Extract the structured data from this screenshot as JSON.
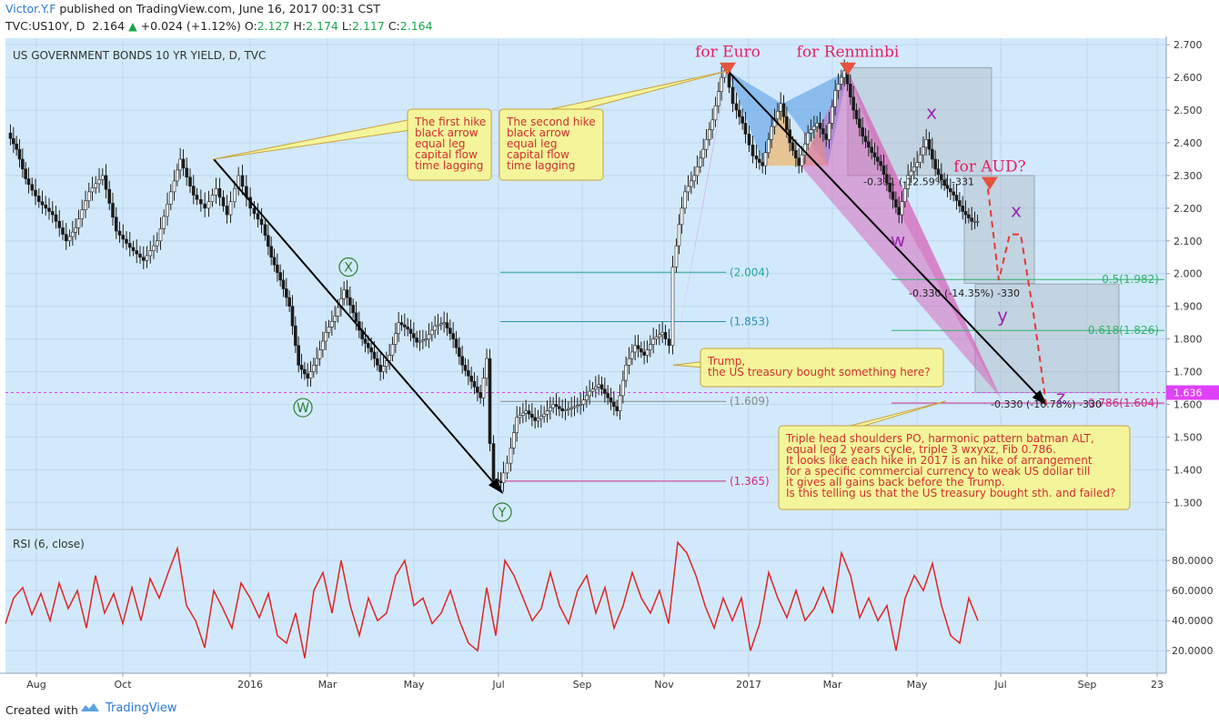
{
  "header": {
    "author": "Victor.Y.F",
    "published": "published on TradingView.com, June 16, 2017 00:31 CST",
    "symbol": "TVC:US10Y, D",
    "last": "2.164",
    "change": "+0.024 (+1.12%)",
    "o_label": "O:",
    "o": "2.127",
    "h_label": "H:",
    "h": "2.174",
    "l_label": "L:",
    "l": "2.117",
    "c_label": "C:",
    "c": "2.164",
    "up_color": "#1aa64a"
  },
  "footer": {
    "created_with": "Created with",
    "brand": "TradingView"
  },
  "chart_data": {
    "type": "candlestick",
    "title": "US GOVERNMENT BONDS 10 YR YIELD, D, TVC",
    "x_ticks": [
      "Aug",
      "Oct",
      "2016",
      "Mar",
      "May",
      "Jul",
      "Sep",
      "Nov",
      "2017",
      "Mar",
      "May",
      "Jul",
      "Sep",
      "23"
    ],
    "x_tick_index": [
      40,
      135,
      275,
      360,
      455,
      548,
      640,
      730,
      823,
      915,
      1008,
      1100,
      1195,
      1272
    ],
    "ylim": [
      1.22,
      2.72
    ],
    "y_ticks": [
      1.3,
      1.4,
      1.5,
      1.6,
      1.7,
      1.8,
      1.9,
      2.0,
      2.1,
      2.2,
      2.3,
      2.4,
      2.5,
      2.6,
      2.7
    ],
    "y_tick_labels": [
      "1.300",
      "1.400",
      "1.500",
      "1.600",
      "1.700",
      "1.800",
      "1.900",
      "2.000",
      "2.100",
      "2.200",
      "2.300",
      "2.400",
      "2.500",
      "2.600",
      "2.700"
    ],
    "current_price": {
      "value": 1.636,
      "label": "1.636",
      "color": "#e040fb"
    },
    "price_path": [
      [
        10,
        2.43
      ],
      [
        20,
        2.38
      ],
      [
        30,
        2.29
      ],
      [
        45,
        2.22
      ],
      [
        60,
        2.18
      ],
      [
        75,
        2.1
      ],
      [
        85,
        2.14
      ],
      [
        100,
        2.25
      ],
      [
        115,
        2.3
      ],
      [
        130,
        2.13
      ],
      [
        145,
        2.08
      ],
      [
        160,
        2.04
      ],
      [
        175,
        2.1
      ],
      [
        190,
        2.25
      ],
      [
        200,
        2.35
      ],
      [
        215,
        2.24
      ],
      [
        228,
        2.2
      ],
      [
        240,
        2.26
      ],
      [
        252,
        2.18
      ],
      [
        265,
        2.3
      ],
      [
        278,
        2.2
      ],
      [
        290,
        2.15
      ],
      [
        300,
        2.05
      ],
      [
        310,
        1.98
      ],
      [
        320,
        1.9
      ],
      [
        330,
        1.72
      ],
      [
        340,
        1.68
      ],
      [
        350,
        1.74
      ],
      [
        360,
        1.82
      ],
      [
        370,
        1.87
      ],
      [
        380,
        1.95
      ],
      [
        390,
        1.88
      ],
      [
        400,
        1.8
      ],
      [
        410,
        1.76
      ],
      [
        420,
        1.7
      ],
      [
        430,
        1.75
      ],
      [
        440,
        1.85
      ],
      [
        450,
        1.83
      ],
      [
        460,
        1.79
      ],
      [
        470,
        1.8
      ],
      [
        480,
        1.84
      ],
      [
        490,
        1.85
      ],
      [
        500,
        1.8
      ],
      [
        510,
        1.72
      ],
      [
        520,
        1.67
      ],
      [
        530,
        1.62
      ],
      [
        537,
        1.74
      ],
      [
        541,
        1.48
      ],
      [
        546,
        1.37
      ],
      [
        552,
        1.36
      ],
      [
        560,
        1.42
      ],
      [
        570,
        1.56
      ],
      [
        580,
        1.58
      ],
      [
        590,
        1.55
      ],
      [
        600,
        1.57
      ],
      [
        610,
        1.6
      ],
      [
        620,
        1.58
      ],
      [
        630,
        1.59
      ],
      [
        640,
        1.6
      ],
      [
        650,
        1.64
      ],
      [
        660,
        1.66
      ],
      [
        670,
        1.62
      ],
      [
        680,
        1.58
      ],
      [
        690,
        1.72
      ],
      [
        700,
        1.78
      ],
      [
        710,
        1.75
      ],
      [
        720,
        1.8
      ],
      [
        730,
        1.82
      ],
      [
        738,
        1.78
      ],
      [
        742,
        2.02
      ],
      [
        748,
        2.15
      ],
      [
        755,
        2.25
      ],
      [
        765,
        2.3
      ],
      [
        775,
        2.38
      ],
      [
        785,
        2.47
      ],
      [
        795,
        2.6
      ],
      [
        800,
        2.62
      ],
      [
        808,
        2.52
      ],
      [
        818,
        2.46
      ],
      [
        830,
        2.36
      ],
      [
        840,
        2.33
      ],
      [
        850,
        2.45
      ],
      [
        860,
        2.52
      ],
      [
        870,
        2.4
      ],
      [
        880,
        2.33
      ],
      [
        890,
        2.43
      ],
      [
        900,
        2.46
      ],
      [
        910,
        2.41
      ],
      [
        920,
        2.56
      ],
      [
        930,
        2.62
      ],
      [
        940,
        2.5
      ],
      [
        950,
        2.42
      ],
      [
        960,
        2.37
      ],
      [
        970,
        2.33
      ],
      [
        980,
        2.25
      ],
      [
        990,
        2.18
      ],
      [
        1000,
        2.3
      ],
      [
        1010,
        2.34
      ],
      [
        1020,
        2.41
      ],
      [
        1030,
        2.32
      ],
      [
        1040,
        2.27
      ],
      [
        1050,
        2.24
      ],
      [
        1060,
        2.19
      ],
      [
        1070,
        2.16
      ],
      [
        1076,
        2.16
      ]
    ],
    "price_levels": [
      {
        "value": 2.004,
        "label": "(2.004)",
        "color": "#26a69a"
      },
      {
        "value": 1.853,
        "label": "(1.853)",
        "color": "#2b8fb8"
      },
      {
        "value": 1.609,
        "label": "(1.609)",
        "color": "#888888"
      },
      {
        "value": 1.365,
        "label": "(1.365)",
        "color": "#d0278a"
      },
      {
        "value": 1.982,
        "label": "0.5(1.982)",
        "color": "#2fb36a"
      },
      {
        "value": 1.826,
        "label": "0.618(1.826)",
        "color": "#2fb36a"
      },
      {
        "value": 1.604,
        "label": "0.786(1.604)",
        "color": "#d0278a"
      }
    ],
    "wave_labels": [
      {
        "text": "X",
        "x": 383,
        "y": 2.02,
        "color": "#2e7d32",
        "circled": true
      },
      {
        "text": "W",
        "x": 333,
        "y": 1.59,
        "color": "#2e7d32",
        "circled": true
      },
      {
        "text": "Y",
        "x": 552,
        "y": 1.27,
        "color": "#2e7d32",
        "circled": true
      },
      {
        "text": "x",
        "x": 1024,
        "y": 2.49,
        "color": "#9c27b0",
        "circled": false
      },
      {
        "text": "w",
        "x": 987,
        "y": 2.1,
        "color": "#9c27b0",
        "circled": false
      },
      {
        "text": "x",
        "x": 1117,
        "y": 2.19,
        "color": "#9c27b0",
        "circled": false
      },
      {
        "text": "y",
        "x": 1102,
        "y": 1.87,
        "color": "#9c27b0",
        "circled": false
      },
      {
        "text": "z",
        "x": 1166,
        "y": 1.62,
        "color": "#9c27b0",
        "circled": false
      }
    ],
    "markers": [
      {
        "text": "for Euro",
        "x": 800,
        "y": 2.64,
        "color": "#e91e63"
      },
      {
        "text": "for Renminbi",
        "x": 932,
        "y": 2.64,
        "color": "#e91e63"
      },
      {
        "text": "for AUD?",
        "x": 1088,
        "y": 2.29,
        "color": "#e91e63"
      }
    ],
    "measures": [
      {
        "text": "-0.331 (-12.59%) -331",
        "x": 1010,
        "y": 2.27
      },
      {
        "text": "-0.330 (-14.35%) -330",
        "x": 1060,
        "y": 1.93
      },
      {
        "text": "-0.330 (-16.78%) -330",
        "x": 1150,
        "y": 1.59
      }
    ],
    "callouts": [
      {
        "lines": [
          "The first hike",
          "black arrow",
          "equal leg",
          "capital flow",
          "time lagging"
        ],
        "color": "#d32f2f"
      },
      {
        "lines": [
          "The second hike",
          "black arrow",
          "equal leg",
          "capital flow",
          "time lagging"
        ],
        "color": "#d32f2f"
      },
      {
        "lines": [
          "Trump,",
          "the US treasury bought something here?"
        ],
        "color": "#d32f2f"
      },
      {
        "lines": [
          "Triple head shoulders PO, harmonic pattern batman ALT,",
          "equal leg 2 years cycle, triple 3 wxyxz, Fib 0.786.",
          "It looks like each hike in 2017 is an hike of arrangement",
          "for a specific commercial currency to weak US dollar till",
          "it gives all gains back before the Trump.",
          "Is this telling us that the US treasury bought sth. and failed?"
        ],
        "color": "#d32f2f"
      }
    ],
    "rsi": {
      "title": "RSI (6, close)",
      "ylim": [
        5,
        100
      ],
      "y_ticks": [
        20,
        40,
        60,
        80
      ],
      "y_tick_labels": [
        "20.0000",
        "40.0000",
        "60.0000",
        "80.0000"
      ],
      "color": "#e02424",
      "path": [
        [
          6,
          38
        ],
        [
          15,
          55
        ],
        [
          25,
          62
        ],
        [
          35,
          44
        ],
        [
          45,
          58
        ],
        [
          55,
          40
        ],
        [
          65,
          65
        ],
        [
          75,
          48
        ],
        [
          85,
          60
        ],
        [
          95,
          35
        ],
        [
          105,
          70
        ],
        [
          115,
          45
        ],
        [
          125,
          58
        ],
        [
          135,
          38
        ],
        [
          145,
          62
        ],
        [
          155,
          40
        ],
        [
          165,
          68
        ],
        [
          175,
          55
        ],
        [
          185,
          72
        ],
        [
          195,
          88
        ],
        [
          205,
          50
        ],
        [
          215,
          40
        ],
        [
          225,
          22
        ],
        [
          235,
          60
        ],
        [
          245,
          48
        ],
        [
          255,
          35
        ],
        [
          265,
          65
        ],
        [
          275,
          55
        ],
        [
          285,
          42
        ],
        [
          295,
          58
        ],
        [
          305,
          30
        ],
        [
          315,
          25
        ],
        [
          325,
          45
        ],
        [
          335,
          15
        ],
        [
          345,
          60
        ],
        [
          355,
          72
        ],
        [
          365,
          45
        ],
        [
          375,
          80
        ],
        [
          385,
          50
        ],
        [
          395,
          30
        ],
        [
          405,
          55
        ],
        [
          415,
          40
        ],
        [
          425,
          45
        ],
        [
          435,
          70
        ],
        [
          445,
          80
        ],
        [
          455,
          50
        ],
        [
          465,
          55
        ],
        [
          475,
          38
        ],
        [
          485,
          45
        ],
        [
          495,
          60
        ],
        [
          505,
          40
        ],
        [
          515,
          25
        ],
        [
          525,
          20
        ],
        [
          535,
          62
        ],
        [
          545,
          30
        ],
        [
          555,
          80
        ],
        [
          565,
          70
        ],
        [
          575,
          55
        ],
        [
          585,
          40
        ],
        [
          595,
          48
        ],
        [
          605,
          72
        ],
        [
          615,
          50
        ],
        [
          625,
          38
        ],
        [
          635,
          60
        ],
        [
          645,
          70
        ],
        [
          655,
          45
        ],
        [
          665,
          62
        ],
        [
          675,
          35
        ],
        [
          685,
          50
        ],
        [
          695,
          72
        ],
        [
          705,
          55
        ],
        [
          715,
          45
        ],
        [
          725,
          60
        ],
        [
          735,
          38
        ],
        [
          745,
          92
        ],
        [
          755,
          85
        ],
        [
          765,
          70
        ],
        [
          775,
          50
        ],
        [
          785,
          35
        ],
        [
          795,
          55
        ],
        [
          805,
          40
        ],
        [
          815,
          55
        ],
        [
          825,
          20
        ],
        [
          835,
          38
        ],
        [
          845,
          72
        ],
        [
          855,
          55
        ],
        [
          865,
          42
        ],
        [
          875,
          60
        ],
        [
          885,
          40
        ],
        [
          895,
          48
        ],
        [
          905,
          62
        ],
        [
          915,
          45
        ],
        [
          925,
          85
        ],
        [
          935,
          70
        ],
        [
          945,
          42
        ],
        [
          955,
          55
        ],
        [
          965,
          40
        ],
        [
          975,
          50
        ],
        [
          985,
          20
        ],
        [
          995,
          55
        ],
        [
          1005,
          70
        ],
        [
          1015,
          60
        ],
        [
          1025,
          78
        ],
        [
          1035,
          50
        ],
        [
          1045,
          30
        ],
        [
          1055,
          25
        ],
        [
          1065,
          55
        ],
        [
          1075,
          40
        ]
      ]
    }
  }
}
